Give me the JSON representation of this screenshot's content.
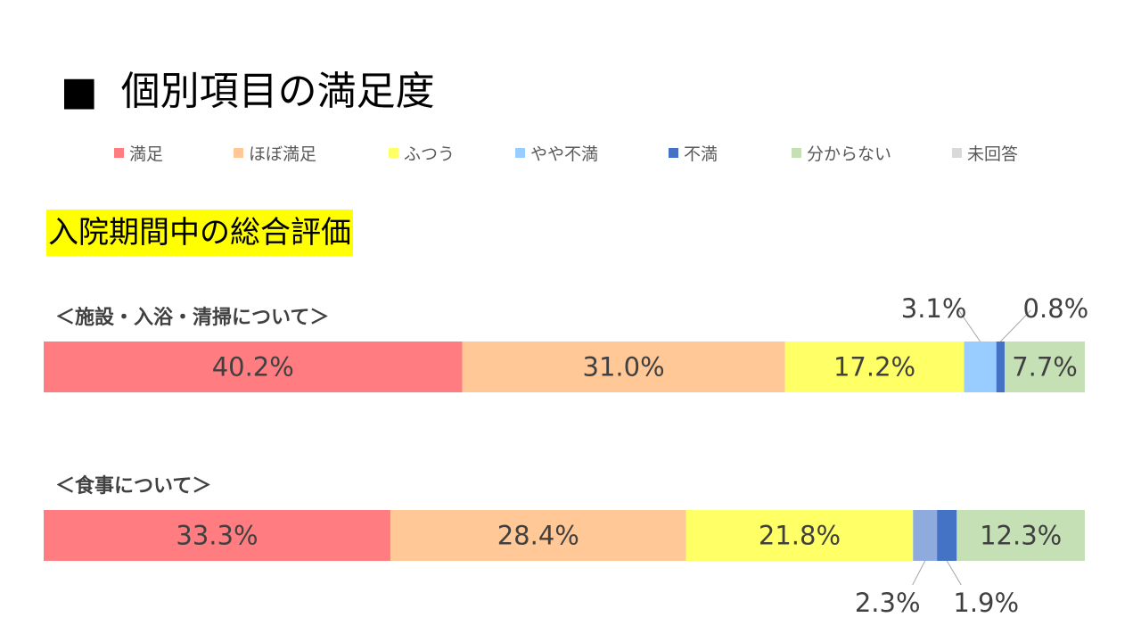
{
  "page_title": "個別項目の満足度",
  "title_marker": "■",
  "section_title": "入院期間中の総合評価",
  "legend": [
    {
      "label": "満足",
      "color": "#ff7c80"
    },
    {
      "label": "ほぼ満足",
      "color": "#ffc896"
    },
    {
      "label": "ふつう",
      "color": "#ffff66"
    },
    {
      "label": "やや不満",
      "color": "#99ccff"
    },
    {
      "label": "不満",
      "color": "#4472c4"
    },
    {
      "label": "分からない",
      "color": "#c5e0b4"
    },
    {
      "label": "未回答",
      "color": "#d9d9d9"
    }
  ],
  "chart_data": {
    "type": "bar",
    "orientation": "horizontal-stacked-100",
    "series_names": [
      "満足",
      "ほぼ満足",
      "ふつう",
      "やや不満",
      "不満",
      "分からない",
      "未回答"
    ],
    "categories": [
      "＜施設・入浴・清掃について＞",
      "＜食事について＞"
    ],
    "bars": [
      {
        "label": "＜施設・入浴・清掃について＞",
        "values": [
          40.2,
          31.0,
          17.2,
          3.1,
          0.8,
          7.7
        ],
        "labels": [
          "40.2%",
          "31.0%",
          "17.2%",
          "3.1%",
          "0.8%",
          "7.7%"
        ],
        "colors": [
          "#ff7c80",
          "#ffc896",
          "#ffff66",
          "#99ccff",
          "#4472c4",
          "#c5e0b4"
        ]
      },
      {
        "label": "＜食事について＞",
        "values": [
          33.3,
          28.4,
          21.8,
          2.3,
          1.9,
          12.3
        ],
        "labels": [
          "33.3%",
          "28.4%",
          "21.8%",
          "2.3%",
          "1.9%",
          "12.3%"
        ],
        "colors": [
          "#ff7c80",
          "#ffc896",
          "#ffff66",
          "#8faadc",
          "#4472c4",
          "#c5e0b4"
        ]
      }
    ],
    "xlim": [
      0,
      100
    ]
  }
}
